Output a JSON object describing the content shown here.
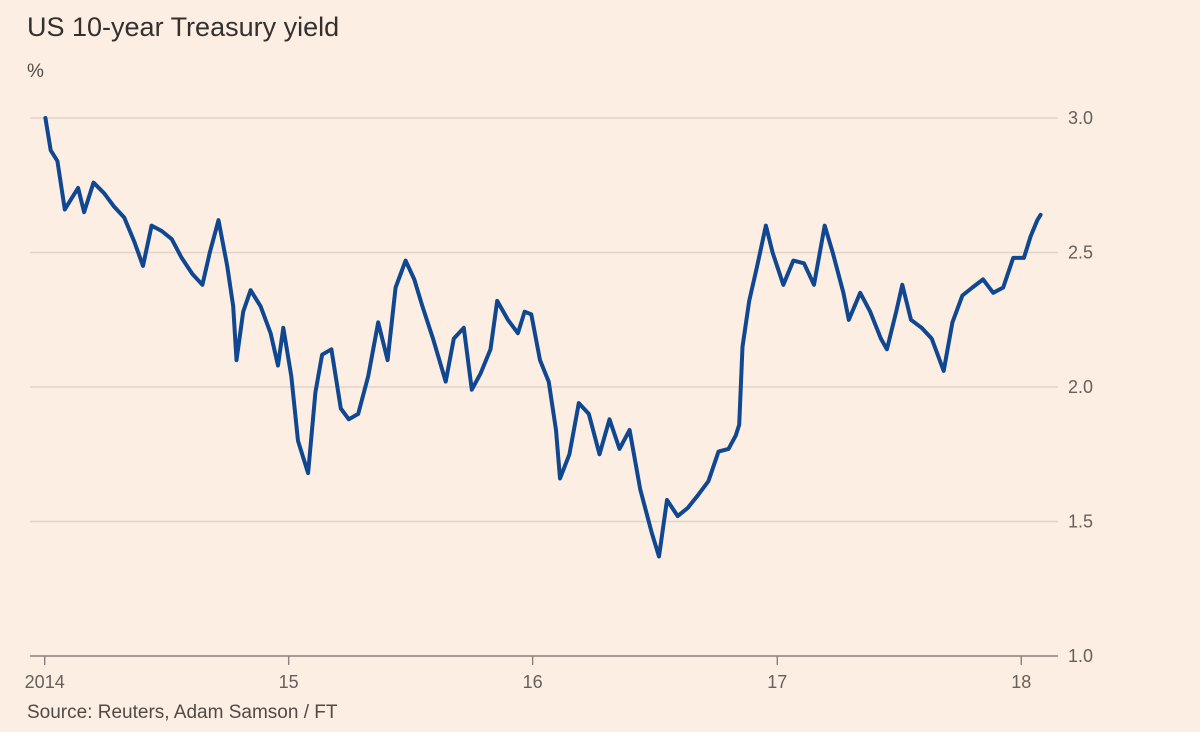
{
  "chart_data": {
    "type": "line",
    "title": "US 10-year Treasury yield",
    "ylabel": "%",
    "source": "Source: Reuters, Adam Samson / FT",
    "ylim": [
      1.0,
      3.0
    ],
    "yticks": [
      {
        "value": 1.0,
        "label": "1.0"
      },
      {
        "value": 1.5,
        "label": "1.5"
      },
      {
        "value": 2.0,
        "label": "2.0"
      },
      {
        "value": 2.5,
        "label": "2.5"
      },
      {
        "value": 3.0,
        "label": "3.0"
      }
    ],
    "xlim": [
      "2013-12-10",
      "2018-02-25"
    ],
    "xticks": [
      {
        "value": "2014-01-01",
        "label": "2014"
      },
      {
        "value": "2015-01-01",
        "label": "15"
      },
      {
        "value": "2016-01-01",
        "label": "16"
      },
      {
        "value": "2017-01-01",
        "label": "17"
      },
      {
        "value": "2018-01-01",
        "label": "18"
      }
    ],
    "grid": true,
    "colors": {
      "background": "#fdeee3",
      "line": "#0f4790"
    },
    "series": [
      {
        "x": [
          "2014-01-02",
          "2014-01-10",
          "2014-01-20",
          "2014-01-31",
          "2014-02-10",
          "2014-02-20",
          "2014-03-01",
          "2014-03-15",
          "2014-03-31",
          "2014-04-15",
          "2014-04-30",
          "2014-05-15",
          "2014-05-28",
          "2014-06-10",
          "2014-06-25",
          "2014-07-10",
          "2014-07-25",
          "2014-08-10",
          "2014-08-25",
          "2014-09-05",
          "2014-09-18",
          "2014-10-01",
          "2014-10-10",
          "2014-10-15",
          "2014-10-25",
          "2014-11-05",
          "2014-11-20",
          "2014-12-05",
          "2014-12-16",
          "2014-12-24",
          "2015-01-05",
          "2015-01-15",
          "2015-01-30",
          "2015-02-10",
          "2015-02-20",
          "2015-03-06",
          "2015-03-20",
          "2015-04-01",
          "2015-04-15",
          "2015-04-30",
          "2015-05-15",
          "2015-05-29",
          "2015-06-10",
          "2015-06-25",
          "2015-07-08",
          "2015-07-20",
          "2015-08-05",
          "2015-08-24",
          "2015-09-05",
          "2015-09-20",
          "2015-10-02",
          "2015-10-15",
          "2015-10-30",
          "2015-11-09",
          "2015-11-25",
          "2015-12-10",
          "2015-12-20",
          "2015-12-30",
          "2016-01-12",
          "2016-01-25",
          "2016-02-05",
          "2016-02-11",
          "2016-02-25",
          "2016-03-10",
          "2016-03-25",
          "2016-04-10",
          "2016-04-25",
          "2016-05-10",
          "2016-05-25",
          "2016-06-10",
          "2016-06-27",
          "2016-07-08",
          "2016-07-20",
          "2016-08-05",
          "2016-08-20",
          "2016-09-05",
          "2016-09-20",
          "2016-10-05",
          "2016-10-20",
          "2016-10-31",
          "2016-11-05",
          "2016-11-10",
          "2016-11-20",
          "2016-12-01",
          "2016-12-15",
          "2016-12-25",
          "2017-01-10",
          "2017-01-25",
          "2017-02-10",
          "2017-02-25",
          "2017-03-13",
          "2017-03-25",
          "2017-04-10",
          "2017-04-18",
          "2017-05-05",
          "2017-05-20",
          "2017-06-05",
          "2017-06-14",
          "2017-06-28",
          "2017-07-07",
          "2017-07-20",
          "2017-08-05",
          "2017-08-20",
          "2017-09-07",
          "2017-09-20",
          "2017-10-05",
          "2017-10-20",
          "2017-11-05",
          "2017-11-20",
          "2017-12-05",
          "2017-12-20",
          "2018-01-05",
          "2018-01-15",
          "2018-01-25",
          "2018-01-30"
        ],
        "values": [
          3.0,
          2.88,
          2.84,
          2.66,
          2.7,
          2.74,
          2.65,
          2.76,
          2.72,
          2.67,
          2.63,
          2.54,
          2.45,
          2.6,
          2.58,
          2.55,
          2.48,
          2.42,
          2.38,
          2.5,
          2.62,
          2.45,
          2.3,
          2.1,
          2.28,
          2.36,
          2.3,
          2.2,
          2.08,
          2.22,
          2.04,
          1.8,
          1.68,
          1.98,
          2.12,
          2.14,
          1.92,
          1.88,
          1.9,
          2.04,
          2.24,
          2.1,
          2.37,
          2.47,
          2.4,
          2.3,
          2.18,
          2.02,
          2.18,
          2.22,
          1.99,
          2.05,
          2.14,
          2.32,
          2.25,
          2.2,
          2.28,
          2.27,
          2.1,
          2.02,
          1.84,
          1.66,
          1.75,
          1.94,
          1.9,
          1.75,
          1.88,
          1.77,
          1.84,
          1.62,
          1.46,
          1.37,
          1.58,
          1.52,
          1.55,
          1.6,
          1.65,
          1.76,
          1.77,
          1.82,
          1.86,
          2.15,
          2.32,
          2.44,
          2.6,
          2.5,
          2.38,
          2.47,
          2.46,
          2.38,
          2.6,
          2.5,
          2.35,
          2.25,
          2.35,
          2.28,
          2.18,
          2.14,
          2.28,
          2.38,
          2.25,
          2.22,
          2.18,
          2.06,
          2.24,
          2.34,
          2.37,
          2.4,
          2.35,
          2.37,
          2.48,
          2.48,
          2.56,
          2.62,
          2.64
        ]
      }
    ]
  }
}
